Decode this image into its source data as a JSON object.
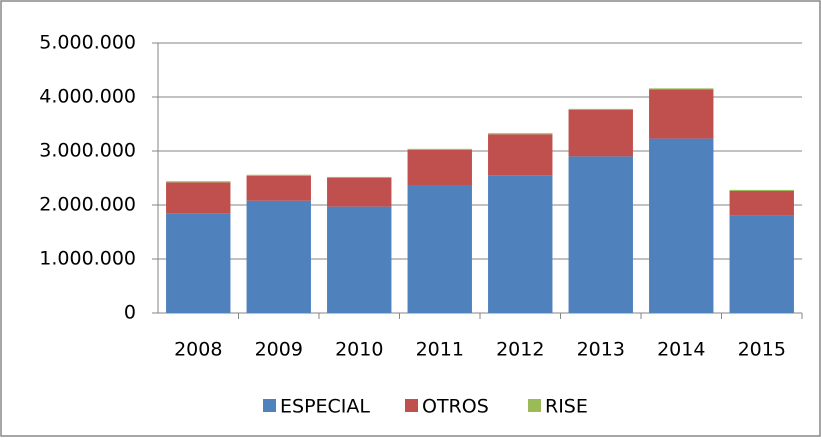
{
  "chart_data": {
    "type": "stacked-bar",
    "categories": [
      "2008",
      "2009",
      "2010",
      "2011",
      "2012",
      "2013",
      "2014",
      "2015"
    ],
    "series": [
      {
        "name": "ESPECIAL",
        "color": "#4f81bd",
        "values": [
          1850000,
          2080000,
          1970000,
          2370000,
          2550000,
          2900000,
          3230000,
          1800000
        ]
      },
      {
        "name": "OTROS",
        "color": "#c0504d",
        "values": [
          570000,
          460000,
          530000,
          650000,
          760000,
          860000,
          910000,
          460000
        ]
      },
      {
        "name": "RISE",
        "color": "#9bbb59",
        "values": [
          20000,
          20000,
          20000,
          20000,
          20000,
          20000,
          20000,
          20000
        ]
      }
    ],
    "ylim": [
      0,
      5000000
    ],
    "yticks": [
      0,
      {
        "value": 1000000,
        "label": "1.000.000"
      },
      {
        "value": 2000000,
        "label": "2.000.000"
      },
      {
        "value": 3000000,
        "label": "3.000.000"
      },
      {
        "value": 4000000,
        "label": "4.000.000"
      },
      {
        "value": 5000000,
        "label": "5.000.000"
      }
    ],
    "grid": true,
    "legend": "bottom"
  }
}
